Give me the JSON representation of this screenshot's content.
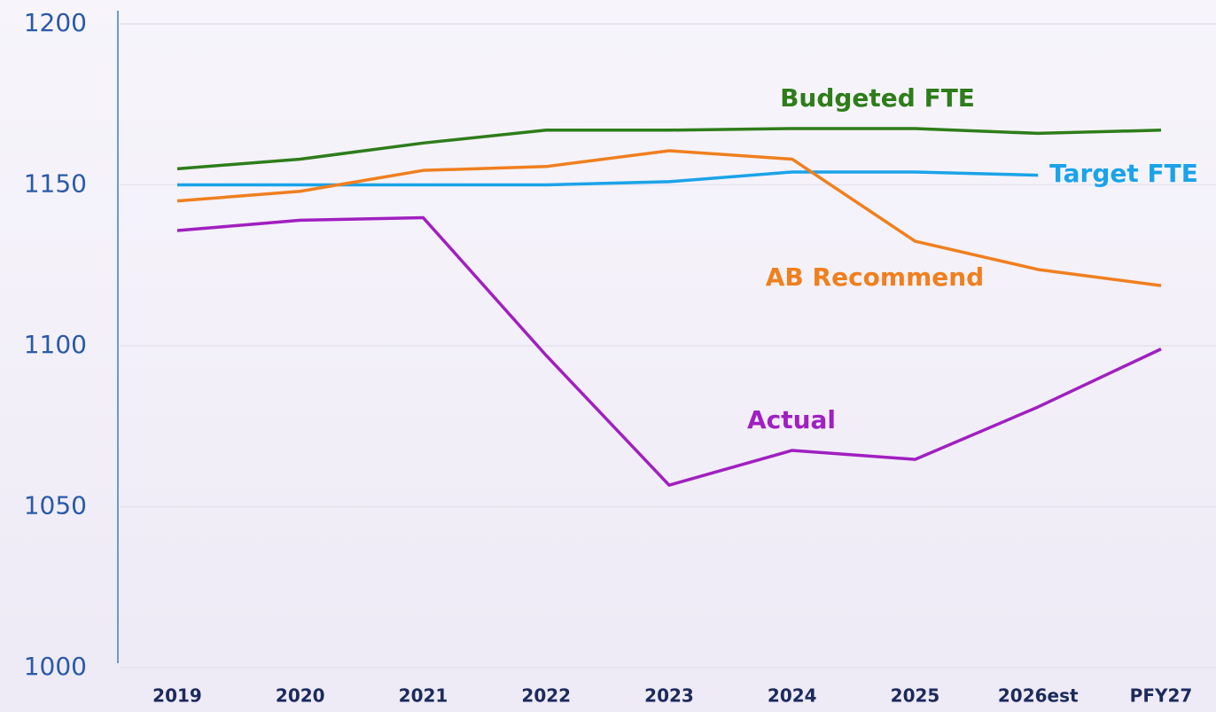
{
  "chart_data": {
    "type": "line",
    "categories": [
      "2019",
      "2020",
      "2021",
      "2022",
      "2023",
      "2024",
      "2025",
      "2026est",
      "PFY27"
    ],
    "series": [
      {
        "name": "Budgeted FTE",
        "color": "#2e7d1a",
        "values": [
          1155,
          1158,
          1163,
          1167,
          1167,
          1167.5,
          1167.5,
          1166,
          1167
        ]
      },
      {
        "name": "Target FTE",
        "color": "#1aa3e8",
        "values": [
          1150,
          1150,
          1150,
          1150,
          1151,
          1154,
          1154,
          1153,
          null
        ]
      },
      {
        "name": "AB Recommend",
        "color": "#f07f1e",
        "values": [
          1145,
          1148,
          1154.5,
          1155.7,
          1160.6,
          1158,
          1132.5,
          1123.7,
          1118.7
        ]
      },
      {
        "name": "Actual",
        "color": "#a020c0",
        "values": [
          1135.8,
          1139,
          1139.8,
          1097,
          1056.7,
          1067.5,
          1064.7,
          1081,
          1099
        ]
      }
    ],
    "ylim": [
      1000,
      1200
    ],
    "yticks": [
      1000,
      1050,
      1100,
      1150,
      1200
    ],
    "grid": true
  }
}
